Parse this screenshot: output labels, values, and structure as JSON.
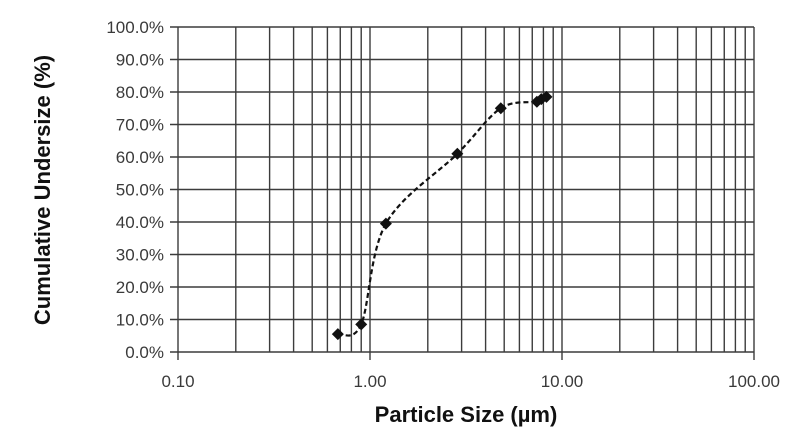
{
  "chart_data": {
    "type": "line",
    "title": "",
    "xlabel": "Particle Size (µm)",
    "ylabel": "Cumulative Undersize (%)",
    "xscale": "log",
    "xlim": [
      0.1,
      100
    ],
    "ylim": [
      0,
      100
    ],
    "grid": true,
    "legend": null,
    "x_tick_labels": [
      "0.10",
      "1.00",
      "10.00",
      "100.00"
    ],
    "y_tick_labels": [
      "0.0%",
      "10.0%",
      "20.0%",
      "30.0%",
      "40.0%",
      "50.0%",
      "60.0%",
      "70.0%",
      "80.0%",
      "90.0%",
      "100.0%"
    ],
    "series": [
      {
        "name": "Cumulative Undersize",
        "line_style": "dashed",
        "marker": "diamond",
        "color": "#111111",
        "x": [
          0.68,
          0.9,
          1.21,
          2.85,
          4.8,
          7.4,
          7.8,
          8.3
        ],
        "y": [
          5.5,
          8.5,
          39.5,
          61.0,
          75.0,
          77.0,
          77.8,
          78.5
        ]
      }
    ]
  },
  "colors": {
    "grid": "#3c3c3c",
    "text": "#3a3a3a",
    "series": "#111111"
  }
}
